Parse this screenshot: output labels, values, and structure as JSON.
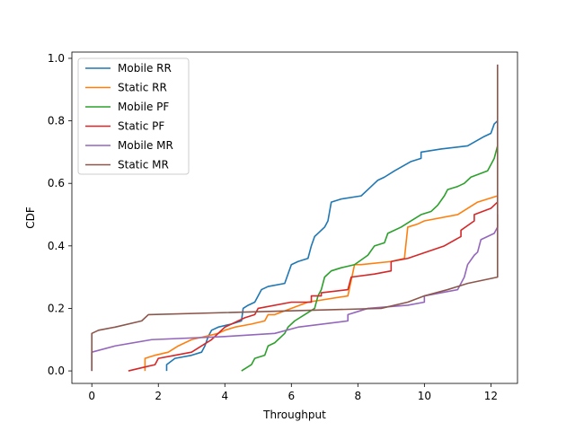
{
  "chart_data": {
    "type": "line",
    "title": "",
    "xlabel": "Throughput",
    "ylabel": "CDF",
    "xlim": [
      -0.6,
      12.8
    ],
    "ylim": [
      -0.04,
      1.02
    ],
    "xticks": [
      0,
      2,
      4,
      6,
      8,
      10,
      12
    ],
    "yticks": [
      0.0,
      0.2,
      0.4,
      0.6,
      0.8,
      1.0
    ],
    "xtick_labels": [
      "0",
      "2",
      "4",
      "6",
      "8",
      "10",
      "12"
    ],
    "ytick_labels": [
      "0.0",
      "0.2",
      "0.4",
      "0.6",
      "0.8",
      "1.0"
    ],
    "grid": false,
    "legend_placement": "upper-left",
    "series": [
      {
        "name": "Mobile RR",
        "color": "#1f77b4",
        "points": [
          [
            2.25,
            0.0
          ],
          [
            2.25,
            0.02
          ],
          [
            2.5,
            0.04
          ],
          [
            3.0,
            0.05
          ],
          [
            3.3,
            0.06
          ],
          [
            3.4,
            0.08
          ],
          [
            3.5,
            0.11
          ],
          [
            3.6,
            0.13
          ],
          [
            3.8,
            0.14
          ],
          [
            4.2,
            0.15
          ],
          [
            4.5,
            0.16
          ],
          [
            4.55,
            0.2
          ],
          [
            4.7,
            0.21
          ],
          [
            4.9,
            0.22
          ],
          [
            5.1,
            0.26
          ],
          [
            5.3,
            0.27
          ],
          [
            5.8,
            0.28
          ],
          [
            5.9,
            0.31
          ],
          [
            6.0,
            0.34
          ],
          [
            6.2,
            0.35
          ],
          [
            6.5,
            0.36
          ],
          [
            6.6,
            0.4
          ],
          [
            6.7,
            0.43
          ],
          [
            6.8,
            0.44
          ],
          [
            7.0,
            0.46
          ],
          [
            7.1,
            0.48
          ],
          [
            7.2,
            0.54
          ],
          [
            7.5,
            0.55
          ],
          [
            8.1,
            0.56
          ],
          [
            8.3,
            0.58
          ],
          [
            8.5,
            0.6
          ],
          [
            8.6,
            0.61
          ],
          [
            8.8,
            0.62
          ],
          [
            9.1,
            0.64
          ],
          [
            9.6,
            0.67
          ],
          [
            9.9,
            0.68
          ],
          [
            9.9,
            0.7
          ],
          [
            10.5,
            0.71
          ],
          [
            11.3,
            0.72
          ],
          [
            11.8,
            0.75
          ],
          [
            12.0,
            0.76
          ],
          [
            12.1,
            0.79
          ],
          [
            12.2,
            0.8
          ]
        ]
      },
      {
        "name": "Static RR",
        "color": "#ff7f0e",
        "points": [
          [
            1.6,
            0.0
          ],
          [
            1.6,
            0.04
          ],
          [
            1.9,
            0.05
          ],
          [
            2.3,
            0.06
          ],
          [
            2.6,
            0.08
          ],
          [
            3.0,
            0.1
          ],
          [
            3.4,
            0.11
          ],
          [
            3.8,
            0.12
          ],
          [
            4.0,
            0.13
          ],
          [
            4.3,
            0.14
          ],
          [
            4.8,
            0.15
          ],
          [
            5.2,
            0.16
          ],
          [
            5.3,
            0.18
          ],
          [
            5.5,
            0.18
          ],
          [
            6.5,
            0.22
          ],
          [
            7.7,
            0.24
          ],
          [
            7.9,
            0.34
          ],
          [
            8.1,
            0.34
          ],
          [
            9.0,
            0.35
          ],
          [
            9.4,
            0.36
          ],
          [
            9.5,
            0.46
          ],
          [
            9.8,
            0.47
          ],
          [
            10.0,
            0.48
          ],
          [
            11.0,
            0.5
          ],
          [
            11.3,
            0.52
          ],
          [
            11.6,
            0.54
          ],
          [
            12.2,
            0.56
          ]
        ]
      },
      {
        "name": "Mobile PF",
        "color": "#2ca02c",
        "points": [
          [
            4.5,
            0.0
          ],
          [
            4.8,
            0.02
          ],
          [
            4.9,
            0.04
          ],
          [
            5.2,
            0.05
          ],
          [
            5.3,
            0.08
          ],
          [
            5.5,
            0.09
          ],
          [
            5.7,
            0.11
          ],
          [
            5.8,
            0.12
          ],
          [
            5.9,
            0.14
          ],
          [
            6.1,
            0.16
          ],
          [
            6.4,
            0.18
          ],
          [
            6.7,
            0.2
          ],
          [
            6.8,
            0.24
          ],
          [
            6.9,
            0.26
          ],
          [
            7.0,
            0.3
          ],
          [
            7.2,
            0.32
          ],
          [
            7.5,
            0.33
          ],
          [
            7.9,
            0.34
          ],
          [
            8.3,
            0.37
          ],
          [
            8.5,
            0.4
          ],
          [
            8.8,
            0.41
          ],
          [
            8.9,
            0.44
          ],
          [
            9.3,
            0.46
          ],
          [
            9.6,
            0.48
          ],
          [
            9.9,
            0.5
          ],
          [
            10.2,
            0.51
          ],
          [
            10.4,
            0.53
          ],
          [
            10.6,
            0.56
          ],
          [
            10.7,
            0.58
          ],
          [
            11.0,
            0.59
          ],
          [
            11.2,
            0.6
          ],
          [
            11.4,
            0.62
          ],
          [
            11.9,
            0.64
          ],
          [
            12.0,
            0.66
          ],
          [
            12.1,
            0.68
          ],
          [
            12.2,
            0.72
          ]
        ]
      },
      {
        "name": "Static PF",
        "color": "#d62728",
        "points": [
          [
            1.1,
            0.0
          ],
          [
            1.5,
            0.01
          ],
          [
            1.9,
            0.02
          ],
          [
            2.0,
            0.04
          ],
          [
            2.5,
            0.05
          ],
          [
            3.0,
            0.06
          ],
          [
            3.6,
            0.1
          ],
          [
            4.0,
            0.14
          ],
          [
            4.6,
            0.17
          ],
          [
            4.9,
            0.18
          ],
          [
            5.0,
            0.2
          ],
          [
            6.0,
            0.22
          ],
          [
            6.6,
            0.22
          ],
          [
            6.6,
            0.24
          ],
          [
            6.9,
            0.24
          ],
          [
            6.9,
            0.25
          ],
          [
            7.7,
            0.26
          ],
          [
            7.8,
            0.3
          ],
          [
            8.5,
            0.31
          ],
          [
            9.0,
            0.32
          ],
          [
            9.0,
            0.35
          ],
          [
            9.5,
            0.36
          ],
          [
            10.6,
            0.4
          ],
          [
            11.1,
            0.43
          ],
          [
            11.1,
            0.45
          ],
          [
            11.5,
            0.48
          ],
          [
            11.5,
            0.5
          ],
          [
            12.0,
            0.52
          ],
          [
            12.2,
            0.54
          ]
        ]
      },
      {
        "name": "Mobile MR",
        "color": "#9467bd",
        "points": [
          [
            0.0,
            0.0
          ],
          [
            0.0,
            0.06
          ],
          [
            0.7,
            0.08
          ],
          [
            1.8,
            0.1
          ],
          [
            4.0,
            0.11
          ],
          [
            5.5,
            0.12
          ],
          [
            6.2,
            0.14
          ],
          [
            7.7,
            0.16
          ],
          [
            7.7,
            0.18
          ],
          [
            8.0,
            0.19
          ],
          [
            8.3,
            0.2
          ],
          [
            9.5,
            0.21
          ],
          [
            10.0,
            0.22
          ],
          [
            10.0,
            0.24
          ],
          [
            11.0,
            0.26
          ],
          [
            11.2,
            0.3
          ],
          [
            11.3,
            0.34
          ],
          [
            11.5,
            0.37
          ],
          [
            11.6,
            0.38
          ],
          [
            11.7,
            0.42
          ],
          [
            11.9,
            0.43
          ],
          [
            12.1,
            0.44
          ],
          [
            12.2,
            0.46
          ],
          [
            12.2,
            0.5
          ]
        ]
      },
      {
        "name": "Static MR",
        "color": "#8c564b",
        "points": [
          [
            0.0,
            0.0
          ],
          [
            0.0,
            0.12
          ],
          [
            0.2,
            0.13
          ],
          [
            0.7,
            0.14
          ],
          [
            1.5,
            0.16
          ],
          [
            1.7,
            0.18
          ],
          [
            8.7,
            0.2
          ],
          [
            9.5,
            0.22
          ],
          [
            10.0,
            0.24
          ],
          [
            10.7,
            0.26
          ],
          [
            11.0,
            0.27
          ],
          [
            11.3,
            0.28
          ],
          [
            12.2,
            0.3
          ],
          [
            12.2,
            0.98
          ]
        ]
      }
    ]
  }
}
